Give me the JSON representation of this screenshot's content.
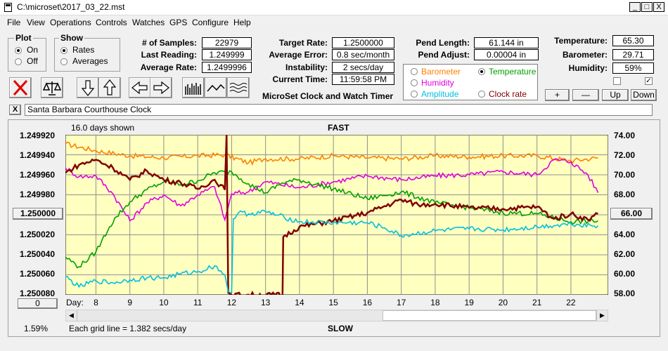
{
  "window": {
    "title": "C:\\microset\\2017_03_22.mst",
    "min": "_",
    "max": "□",
    "close": "X"
  },
  "menu": [
    "File",
    "View",
    "Operations",
    "Controls",
    "Watches",
    "GPS",
    "Configure",
    "Help"
  ],
  "plot_group": {
    "title": "Plot",
    "on": "On",
    "off": "Off"
  },
  "show_group": {
    "title": "Show",
    "rates": "Rates",
    "averages": "Averages"
  },
  "stats": {
    "samples_label": "# of Samples:",
    "samples": "22979",
    "last_label": "Last Reading:",
    "last": "1.249999",
    "avg_label": "Average Rate:",
    "avg": "1.2499996",
    "target_label": "Target Rate:",
    "target": "1.2500000",
    "err_label": "Average Error:",
    "err": "0.8 sec/month",
    "inst_label": "Instability:",
    "inst": "2 secs/day",
    "time_label": "Current Time:",
    "time": "11:59:58 PM",
    "product": "MicroSet Clock and Watch Timer",
    "pend_len_label": "Pend Length:",
    "pend_len": "61.144 in",
    "pend_adj_label": "Pend Adjust:",
    "pend_adj": "0.00004 in",
    "temp_label": "Temperature:",
    "temp": "65.30",
    "baro_label": "Barometer:",
    "baro": "29.71",
    "hum_label": "Humidity:",
    "hum": "59%"
  },
  "channels": [
    {
      "label": "Barometer",
      "color": "#ff8000",
      "selected": false
    },
    {
      "label": "Temperature",
      "color": "#00a000",
      "selected": true
    },
    {
      "label": "Humidity",
      "color": "#e000e0",
      "selected": false
    },
    {
      "label": "Clock rate",
      "color": "#800000",
      "selected": false
    },
    {
      "label": "Amplitude",
      "color": "#00c0e0",
      "selected": false
    }
  ],
  "adjust_buttons": {
    "plus": "+",
    "minus": "—",
    "up": "Up",
    "down": "Down"
  },
  "clock_name": "Santa Barbara Courthouse Clock",
  "clear_btn": "X",
  "plot": {
    "days_shown": "16.0 days shown",
    "fast": "FAST",
    "slow": "SLOW",
    "grid_note": "Each grid line = 1.382 secs/day",
    "percent": "1.59%",
    "left_value_btn": "1.250000",
    "right_value_btn": "66.00",
    "zero_btn": "0",
    "day_label": "Day:",
    "bg": "#ffffc0"
  },
  "chart_data": {
    "type": "line",
    "xlabel": "Day:",
    "xlim": [
      7.1,
      23.1
    ],
    "x_ticks": [
      8,
      9,
      10,
      11,
      12,
      13,
      14,
      15,
      16,
      17,
      18,
      19,
      20,
      21,
      22
    ],
    "left_axis": {
      "labels": [
        "1.249920",
        "1.249940",
        "1.249960",
        "1.249980",
        "1.250000",
        "1.250020",
        "1.250040",
        "1.250060",
        "1.250080"
      ],
      "ylim": [
        1.24992,
        1.25008
      ]
    },
    "right_axis": {
      "labels": [
        "74.00",
        "72.00",
        "70.00",
        "68.00",
        "66.00",
        "64.00",
        "62.00",
        "60.00",
        "58.00"
      ],
      "ylim": [
        58,
        74
      ]
    },
    "series": [
      {
        "name": "Barometer",
        "color": "#ff8000",
        "x": [
          7.1,
          8,
          9,
          10,
          11,
          11.8,
          12.5,
          13,
          14,
          15,
          16,
          17,
          18,
          19,
          20,
          21,
          22,
          22.8
        ],
        "y": [
          73.1,
          72.4,
          71.9,
          71.7,
          71.9,
          72.0,
          71.2,
          71.6,
          71.6,
          71.9,
          71.7,
          71.6,
          71.9,
          71.8,
          71.9,
          71.9,
          71.4,
          71.7
        ]
      },
      {
        "name": "Humidity",
        "color": "#e000e0",
        "x": [
          7.1,
          7.5,
          8,
          8.5,
          9,
          9.5,
          10,
          10.5,
          11,
          11.5,
          11.8,
          12,
          12.5,
          13,
          14,
          15,
          16,
          17,
          18,
          19,
          20,
          21,
          21.5,
          22,
          22.5,
          22.8
        ],
        "y": [
          70.7,
          69.8,
          69.9,
          68.1,
          65.4,
          67.2,
          68.0,
          66.9,
          68.0,
          68.8,
          65.5,
          68.1,
          68.3,
          69.3,
          68.7,
          69.3,
          69.9,
          69.5,
          69.9,
          70.0,
          70.3,
          70.0,
          71.5,
          71.3,
          70.0,
          68.2
        ]
      },
      {
        "name": "Temperature",
        "color": "#00a000",
        "x": [
          7.1,
          7.5,
          8,
          8.4,
          8.6,
          9,
          9.5,
          10,
          10.5,
          11,
          11.5,
          12,
          12.5,
          13,
          13.5,
          14,
          15,
          16,
          17,
          18,
          19,
          20,
          21,
          22,
          22.8
        ],
        "y": [
          61.8,
          60.8,
          62.3,
          64.8,
          65.8,
          67.3,
          68.5,
          69.3,
          69.0,
          69.4,
          70.2,
          70.3,
          69.1,
          68.2,
          69.2,
          69.5,
          68.6,
          67.6,
          68.3,
          67.2,
          66.7,
          66.2,
          66.1,
          65.3,
          65.4
        ]
      },
      {
        "name": "Clock rate",
        "color": "#800000",
        "x": [
          7.1,
          7.5,
          8,
          8.5,
          9,
          9.5,
          10,
          10.5,
          11,
          11.5,
          11.8,
          11.85,
          11.9,
          12.0,
          13.5,
          13.52,
          14,
          15,
          16,
          17,
          17.5,
          18,
          19,
          20,
          21,
          21.5,
          22,
          22.5,
          22.8
        ],
        "y": [
          70.2,
          71.0,
          71.5,
          70.7,
          69.5,
          70.4,
          69.5,
          69.2,
          68.6,
          69.5,
          68.5,
          74.0,
          58.2,
          58.0,
          58.0,
          63.8,
          64.8,
          65.4,
          66.2,
          67.5,
          67.0,
          67.1,
          66.7,
          66.6,
          66.8,
          65.6,
          66.1,
          65.5,
          66.1
        ]
      },
      {
        "name": "Amplitude",
        "color": "#00c0e0",
        "x": [
          7.1,
          7.5,
          8,
          8.5,
          9,
          9.5,
          10,
          10.5,
          11,
          11.5,
          11.8,
          11.9,
          12.0,
          12.05,
          12.2,
          12.5,
          13,
          14,
          15,
          16,
          16.5,
          17,
          18,
          19,
          20,
          21,
          22,
          22.8
        ],
        "y": [
          59.8,
          58.8,
          59.4,
          59.2,
          59.5,
          59.7,
          59.7,
          60.1,
          60.3,
          60.9,
          60.0,
          58.3,
          58.2,
          65.6,
          66.2,
          66.1,
          66.3,
          65.3,
          65.2,
          65.2,
          64.7,
          63.9,
          64.4,
          64.6,
          64.5,
          64.8,
          65.1,
          64.9
        ]
      }
    ]
  }
}
